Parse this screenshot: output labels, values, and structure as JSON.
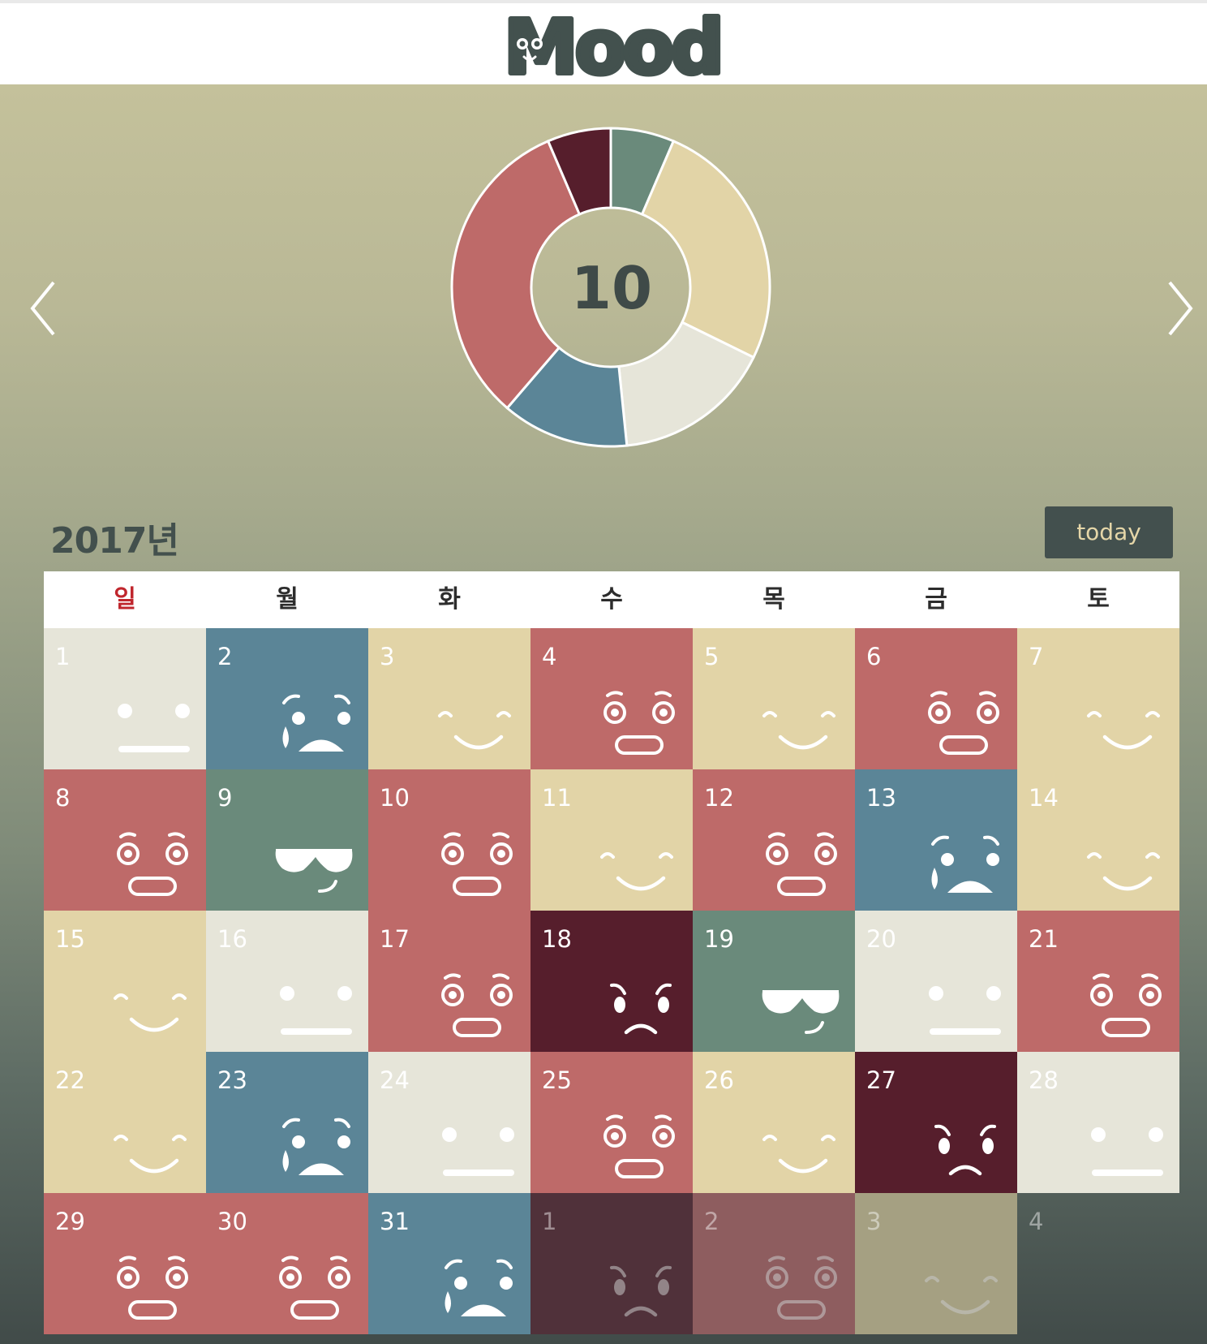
{
  "header": {
    "logo_text": "Mood"
  },
  "nav": {
    "prev_icon": "chevron-left-icon",
    "next_icon": "chevron-right-icon"
  },
  "summary": {
    "count": "10",
    "chart_data": {
      "type": "pie",
      "title": "",
      "slices": [
        {
          "mood": "cool",
          "value": 2,
          "color": "#6a8a7b"
        },
        {
          "mood": "happy",
          "value": 8,
          "color": "#e2d4a7"
        },
        {
          "mood": "neutral",
          "value": 5,
          "color": "#e6e5d9"
        },
        {
          "mood": "sad",
          "value": 4,
          "color": "#5b8597"
        },
        {
          "mood": "surprised",
          "value": 10,
          "color": "#be6a69"
        },
        {
          "mood": "angry",
          "value": 2,
          "color": "#561e2c"
        }
      ]
    }
  },
  "calendar": {
    "year_label": "2017년",
    "today_label": "today",
    "weekdays": [
      "일",
      "월",
      "화",
      "수",
      "목",
      "금",
      "토"
    ],
    "colors": {
      "neutral": "#e6e5d9",
      "sad": "#5b8597",
      "happy": "#e2d4a7",
      "surprised": "#be6a69",
      "cool": "#6a8a7b",
      "angry": "#561e2c"
    },
    "days": [
      {
        "day": "1",
        "mood": "neutral"
      },
      {
        "day": "2",
        "mood": "sad"
      },
      {
        "day": "3",
        "mood": "happy"
      },
      {
        "day": "4",
        "mood": "surprised"
      },
      {
        "day": "5",
        "mood": "happy"
      },
      {
        "day": "6",
        "mood": "surprised"
      },
      {
        "day": "7",
        "mood": "happy"
      },
      {
        "day": "8",
        "mood": "surprised"
      },
      {
        "day": "9",
        "mood": "cool"
      },
      {
        "day": "10",
        "mood": "surprised"
      },
      {
        "day": "11",
        "mood": "happy"
      },
      {
        "day": "12",
        "mood": "surprised"
      },
      {
        "day": "13",
        "mood": "sad"
      },
      {
        "day": "14",
        "mood": "happy"
      },
      {
        "day": "15",
        "mood": "happy"
      },
      {
        "day": "16",
        "mood": "neutral"
      },
      {
        "day": "17",
        "mood": "surprised"
      },
      {
        "day": "18",
        "mood": "angry"
      },
      {
        "day": "19",
        "mood": "cool"
      },
      {
        "day": "20",
        "mood": "neutral"
      },
      {
        "day": "21",
        "mood": "surprised"
      },
      {
        "day": "22",
        "mood": "happy"
      },
      {
        "day": "23",
        "mood": "sad"
      },
      {
        "day": "24",
        "mood": "neutral"
      },
      {
        "day": "25",
        "mood": "surprised"
      },
      {
        "day": "26",
        "mood": "happy"
      },
      {
        "day": "27",
        "mood": "angry"
      },
      {
        "day": "28",
        "mood": "neutral"
      },
      {
        "day": "29",
        "mood": "surprised"
      },
      {
        "day": "30",
        "mood": "surprised"
      },
      {
        "day": "31",
        "mood": "sad"
      },
      {
        "day": "1",
        "mood": "angry",
        "outside": true
      },
      {
        "day": "2",
        "mood": "surprised",
        "outside": true
      },
      {
        "day": "3",
        "mood": "happy",
        "outside": true
      },
      {
        "day": "4",
        "mood": "none",
        "outside": true
      }
    ]
  }
}
